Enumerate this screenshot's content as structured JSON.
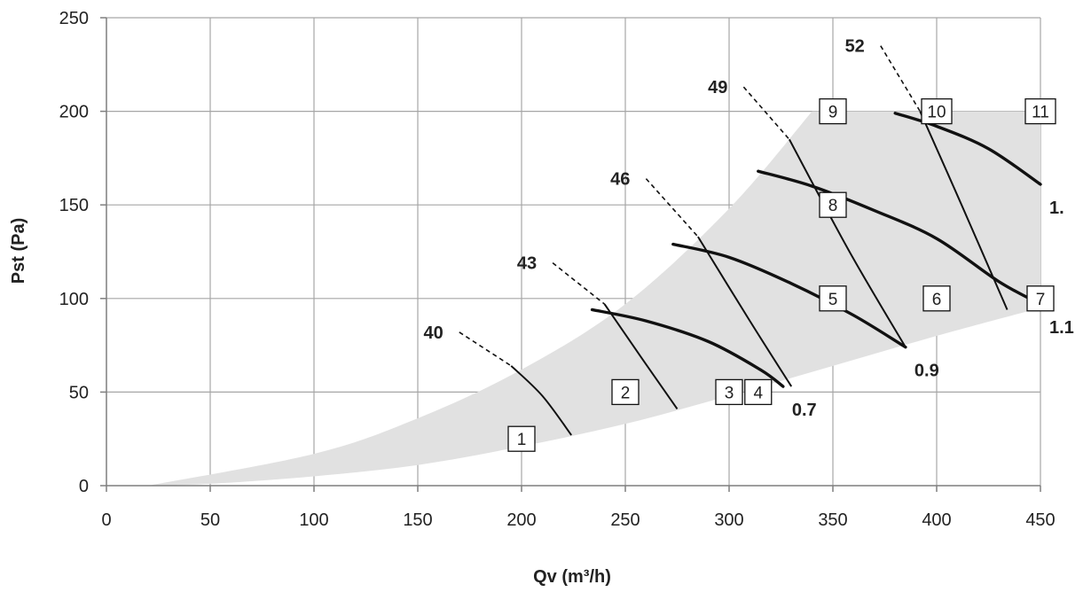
{
  "chart_data": {
    "type": "line",
    "title": "",
    "xlabel": "Qv (m³/h)",
    "ylabel": "Pst (Pa)",
    "xlim": [
      0,
      450
    ],
    "ylim": [
      0,
      250
    ],
    "x_ticks": [
      0,
      50,
      100,
      150,
      200,
      250,
      300,
      350,
      400,
      450
    ],
    "y_ticks": [
      0,
      50,
      100,
      150,
      200,
      250
    ],
    "grid": true,
    "colors": {
      "region": "#e1e1e1",
      "curves": "#111111",
      "grid": "#a6a6a6"
    },
    "operating_region": {
      "upper": [
        [
          20,
          0
        ],
        [
          100,
          17
        ],
        [
          150,
          36
        ],
        [
          200,
          62
        ],
        [
          250,
          97
        ],
        [
          300,
          148
        ],
        [
          340,
          200
        ],
        [
          450,
          200
        ]
      ],
      "lower": [
        [
          450,
          95
        ],
        [
          400,
          80
        ],
        [
          350,
          64
        ],
        [
          300,
          48
        ],
        [
          250,
          33
        ],
        [
          200,
          21
        ],
        [
          150,
          11
        ],
        [
          100,
          5
        ],
        [
          50,
          1
        ],
        [
          20,
          0
        ]
      ]
    },
    "system_curves": [
      {
        "label": "0.7",
        "points": [
          [
            234,
            94
          ],
          [
            260,
            88
          ],
          [
            290,
            77
          ],
          [
            315,
            62
          ],
          [
            326,
            53
          ]
        ]
      },
      {
        "label": "0.9",
        "points": [
          [
            273,
            129
          ],
          [
            300,
            122
          ],
          [
            330,
            108
          ],
          [
            360,
            91
          ],
          [
            385,
            74
          ]
        ]
      },
      {
        "label": "1.1",
        "points": [
          [
            314,
            168
          ],
          [
            340,
            160
          ],
          [
            370,
            147
          ],
          [
            400,
            132
          ],
          [
            430,
            109
          ],
          [
            450,
            97
          ]
        ]
      },
      {
        "label": "1.",
        "points": [
          [
            380,
            199
          ],
          [
            400,
            192
          ],
          [
            425,
            180
          ],
          [
            450,
            161
          ]
        ]
      }
    ],
    "speed_curves": [
      {
        "label": "40",
        "dashed": [
          [
            170,
            82
          ],
          [
            195,
            64
          ]
        ],
        "solid": [
          [
            195,
            64
          ],
          [
            210,
            48
          ],
          [
            224,
            27
          ]
        ]
      },
      {
        "label": "43",
        "dashed": [
          [
            215,
            119
          ],
          [
            240,
            97
          ]
        ],
        "solid": [
          [
            240,
            97
          ],
          [
            258,
            68
          ],
          [
            275,
            41
          ]
        ]
      },
      {
        "label": "46",
        "dashed": [
          [
            260,
            164
          ],
          [
            285,
            133
          ]
        ],
        "solid": [
          [
            285,
            133
          ],
          [
            310,
            88
          ],
          [
            330,
            53
          ]
        ]
      },
      {
        "label": "49",
        "dashed": [
          [
            307,
            213
          ],
          [
            329,
            185
          ]
        ],
        "solid": [
          [
            329,
            185
          ],
          [
            358,
            125
          ],
          [
            385,
            74
          ]
        ]
      },
      {
        "label": "52",
        "dashed": [
          [
            373,
            235
          ],
          [
            392,
            200
          ]
        ],
        "solid": [
          [
            392,
            200
          ],
          [
            412,
            150
          ],
          [
            434,
            94
          ]
        ]
      }
    ],
    "points": [
      {
        "label": "1",
        "x": 200,
        "y": 25
      },
      {
        "label": "2",
        "x": 250,
        "y": 50
      },
      {
        "label": "3",
        "x": 300,
        "y": 50
      },
      {
        "label": "4",
        "x": 314,
        "y": 50
      },
      {
        "label": "5",
        "x": 350,
        "y": 100
      },
      {
        "label": "6",
        "x": 400,
        "y": 100
      },
      {
        "label": "7",
        "x": 450,
        "y": 100
      },
      {
        "label": "8",
        "x": 350,
        "y": 150
      },
      {
        "label": "9",
        "x": 350,
        "y": 200
      },
      {
        "label": "10",
        "x": 400,
        "y": 200
      },
      {
        "label": "11",
        "x": 450,
        "y": 200
      }
    ]
  }
}
